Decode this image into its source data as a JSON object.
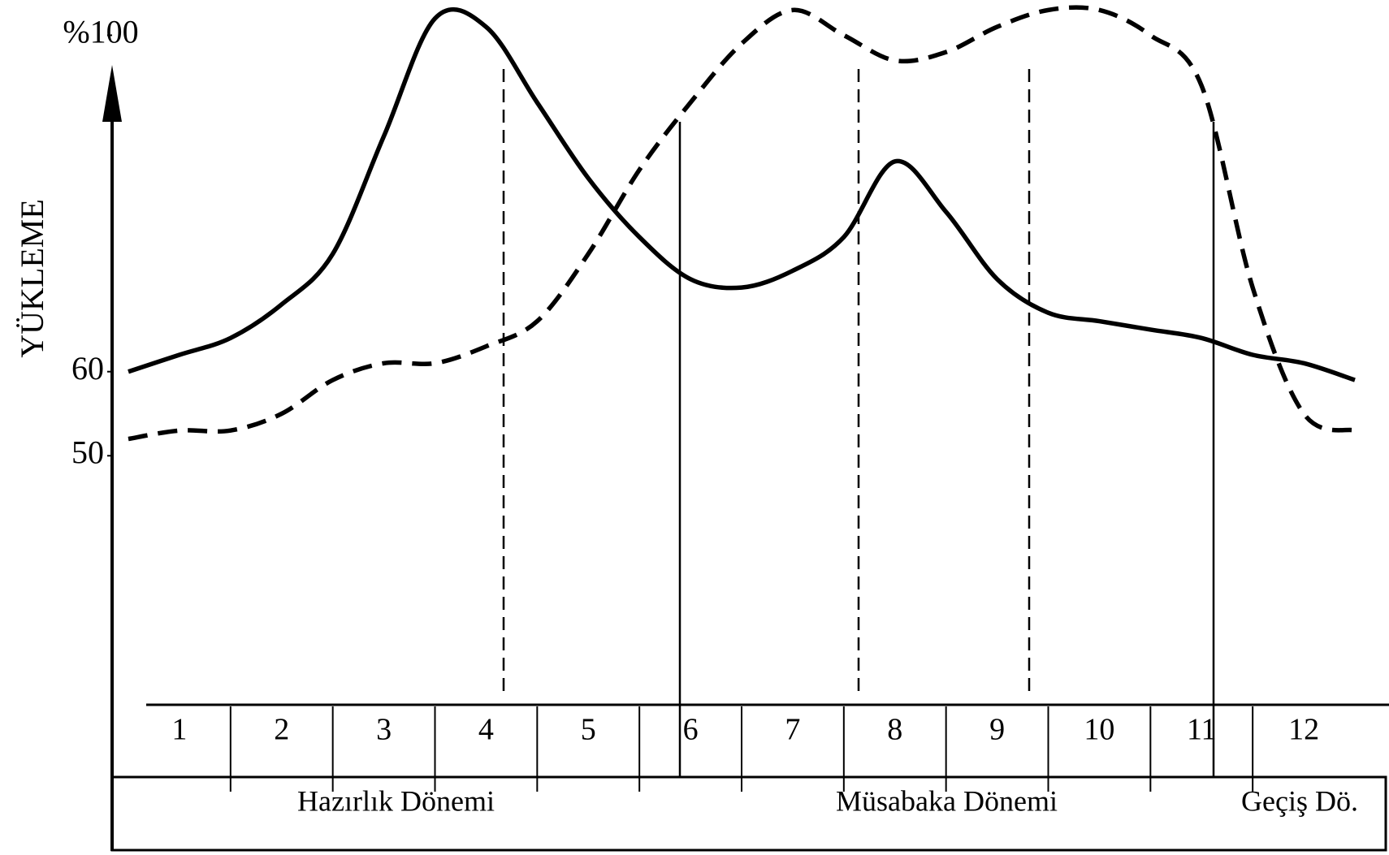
{
  "chart_data": {
    "type": "line",
    "ylabel": "YÜKLEME",
    "ylim": [
      20,
      104
    ],
    "yticks": [
      50,
      60,
      {
        "value": 100,
        "label": "%100"
      }
    ],
    "categories": [
      "1",
      "2",
      "3",
      "4",
      "5",
      "6",
      "7",
      "8",
      "9",
      "10",
      "11",
      "12"
    ],
    "xlim": [
      0,
      12
    ],
    "x": [
      0,
      0.5,
      1,
      1.5,
      2,
      2.5,
      3,
      3.5,
      4,
      4.5,
      5,
      5.5,
      6,
      6.5,
      7,
      7.5,
      8,
      8.5,
      9,
      9.5,
      10,
      10.5,
      11,
      11.5,
      12
    ],
    "series": [
      {
        "color": "#000000",
        "style": "solid",
        "values": [
          60,
          62,
          64,
          68,
          74,
          88,
          102,
          101,
          92,
          83,
          76,
          71,
          70,
          72,
          76,
          85,
          79,
          71,
          67,
          66,
          65,
          64,
          62,
          61,
          59
        ]
      },
      {
        "color": "#000000",
        "style": "dashed",
        "values": [
          52,
          53,
          53,
          55,
          59,
          61,
          61,
          63,
          66,
          74,
          84,
          92,
          99,
          103,
          100,
          97,
          98,
          101,
          103,
          103,
          100,
          94,
          70,
          55,
          53
        ]
      }
    ],
    "periods": [
      "Hazırlık Dönemi",
      "Müsabaka Dönemi",
      "Geçiş Dö."
    ]
  }
}
